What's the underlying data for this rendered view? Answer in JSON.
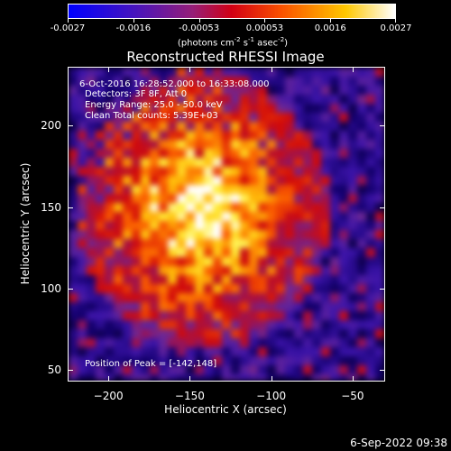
{
  "colorbar": {
    "tick_labels": [
      "-0.0027",
      "-0.0016",
      "-0.00053",
      "0.00053",
      "0.0016",
      "0.0027"
    ],
    "units_prefix": "(photons cm",
    "units_exp1": "-2",
    "units_mid1": " s",
    "units_exp2": "-1",
    "units_mid2": " asec",
    "units_exp3": "-2",
    "units_suffix": ")"
  },
  "title": "Reconstructed RHESSI Image",
  "info": {
    "line1": "6-Oct-2016 16:28:52.000 to 16:33:08.000",
    "line2": "Detectors: 3F 8F, Att 0",
    "line3": "Energy Range: 25.0 - 50.0 keV",
    "line4": "Clean     Total counts: 5.39E+03",
    "peak": "Position of Peak = [-142,148]"
  },
  "axes": {
    "xlabel": "Heliocentric X (arcsec)",
    "ylabel": "Heliocentric Y (arcsec)",
    "xticks": [
      -200,
      -150,
      -100,
      -50
    ],
    "yticks": [
      50,
      100,
      150,
      200
    ],
    "xtick_labels": [
      "−200",
      "−150",
      "−100",
      "−50"
    ],
    "ytick_labels": [
      "50",
      "100",
      "150",
      "200"
    ],
    "xlim": [
      -225,
      -30
    ],
    "ylim": [
      43,
      236
    ]
  },
  "image": {
    "peak_x": -142,
    "peak_y": 148,
    "colormap": "IDL color table 5 (blue-purple-red-orange-yellow-white)"
  },
  "timestamp": "6-Sep-2022 09:38"
}
